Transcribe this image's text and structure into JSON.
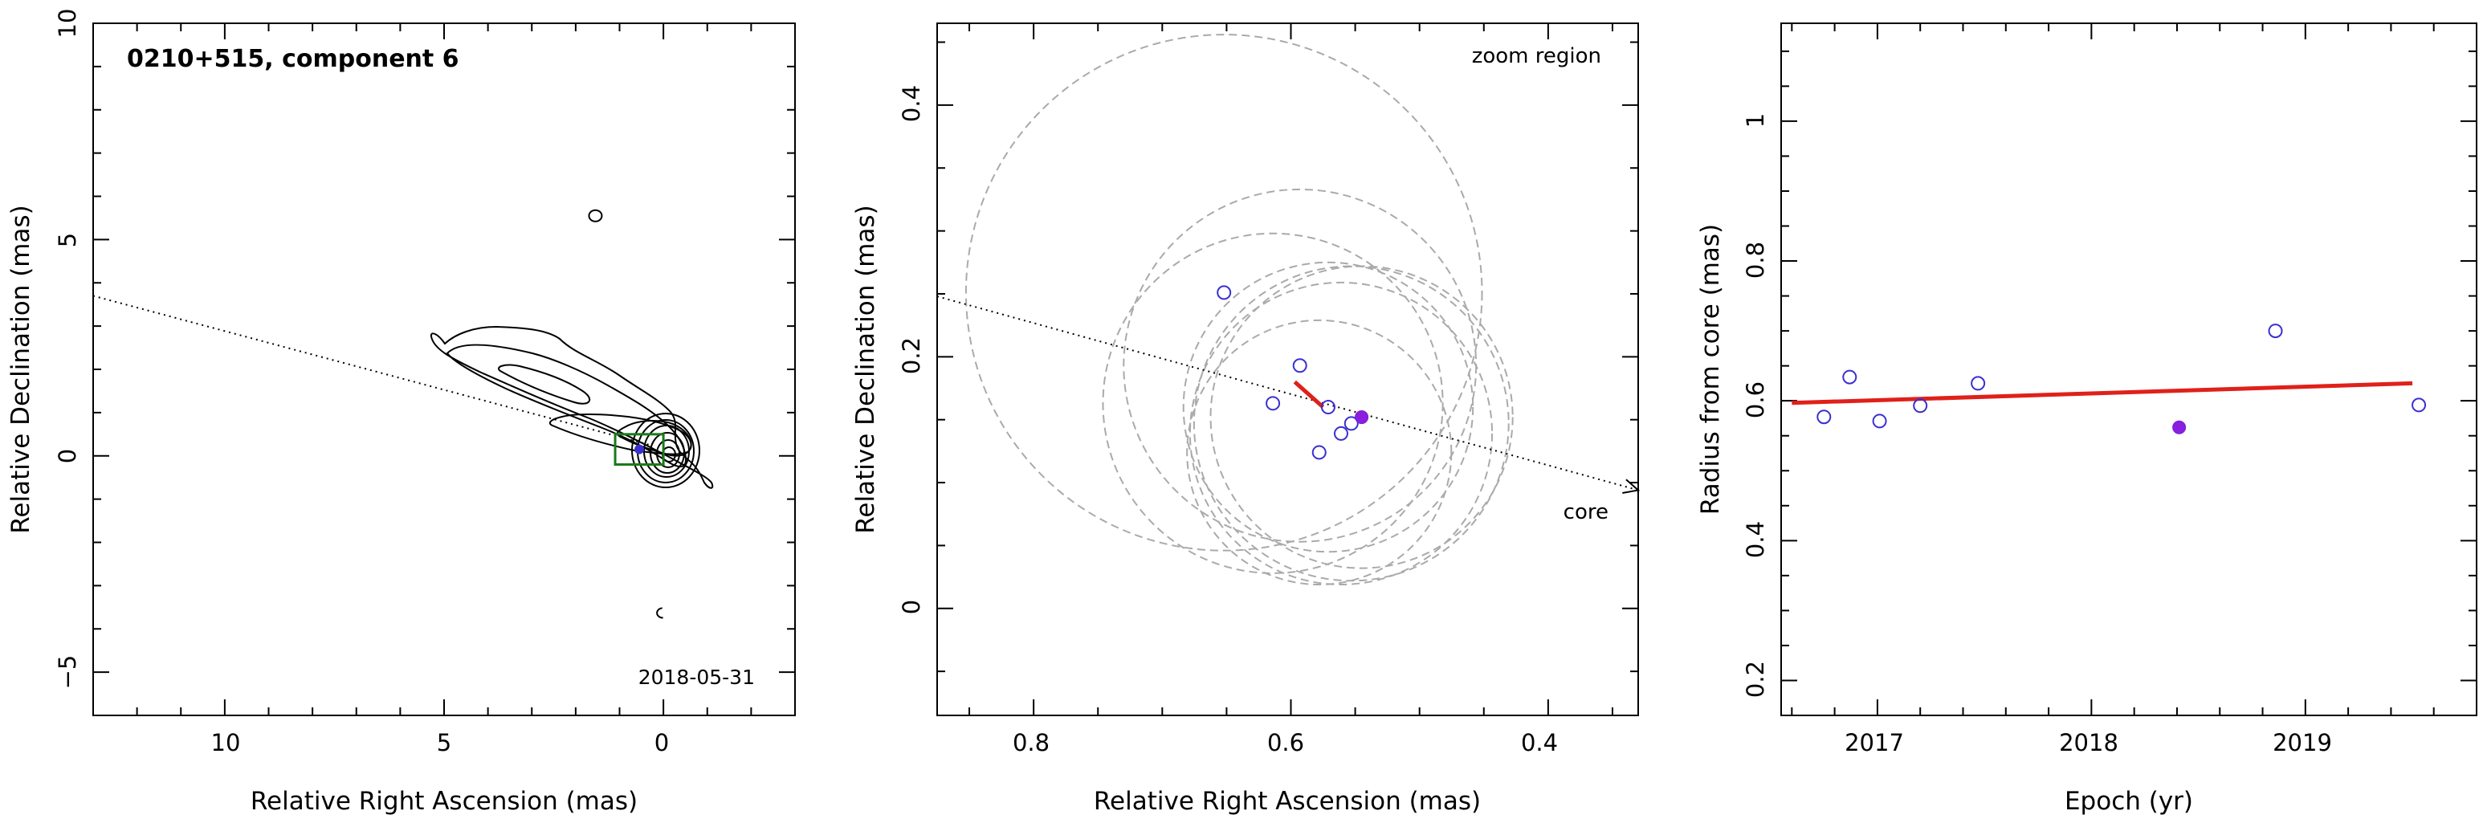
{
  "chart_data": [
    {
      "type": "scatter",
      "panel": "contour-map",
      "title": "0210+515, component 6",
      "date_label": "2018-05-31",
      "xlabel": "Relative Right Ascension (mas)",
      "ylabel": "Relative Declination (mas)",
      "xlim": [
        13,
        -3
      ],
      "ylim": [
        -6,
        10
      ],
      "xticks": [
        10,
        5,
        0
      ],
      "yticks": [
        10,
        5,
        0,
        -5
      ],
      "xtick_labels": [
        "10",
        "5",
        "0"
      ],
      "ytick_labels": [
        "10",
        "5",
        "0",
        "−5"
      ],
      "contour_center": [
        0,
        0
      ],
      "component_marker": {
        "x": 0.55,
        "y": 0.15,
        "box_half_width": 0.55,
        "box_half_height": 0.35
      },
      "small_features": [
        {
          "x": 1.55,
          "y": 5.55
        },
        {
          "x": 0.1,
          "y": -3.65
        }
      ],
      "direction_line": {
        "x": [
          13,
          0.3
        ],
        "y": [
          3.7,
          0.25
        ]
      },
      "colors": {
        "contour": "#000000",
        "box": "#1a7a1a",
        "marker": "#3a2fd0"
      }
    },
    {
      "type": "scatter",
      "panel": "zoom-region",
      "title": "zoom region",
      "annotation": "core",
      "xlabel": "Relative Right Ascension (mas)",
      "ylabel": "Relative Declination (mas)",
      "xlim": [
        0.875,
        0.33
      ],
      "ylim": [
        -0.085,
        0.465
      ],
      "xticks": [
        0.8,
        0.6,
        0.4
      ],
      "yticks": [
        0.4,
        0.2,
        0
      ],
      "xtick_labels": [
        "0.8",
        "0.6",
        "0.4"
      ],
      "ytick_labels": [
        "0.4",
        "0.2",
        "0"
      ],
      "open_points": {
        "x": [
          0.652,
          0.614,
          0.593,
          0.578,
          0.571,
          0.561,
          0.553
        ],
        "y": [
          0.251,
          0.163,
          0.193,
          0.124,
          0.16,
          0.139,
          0.147
        ]
      },
      "filled_point": {
        "x": 0.545,
        "y": 0.152
      },
      "position_circles": [
        {
          "x": 0.652,
          "y": 0.251,
          "r": 0.205
        },
        {
          "x": 0.614,
          "y": 0.163,
          "r": 0.135
        },
        {
          "x": 0.593,
          "y": 0.193,
          "r": 0.14
        },
        {
          "x": 0.578,
          "y": 0.124,
          "r": 0.105
        },
        {
          "x": 0.571,
          "y": 0.16,
          "r": 0.115
        },
        {
          "x": 0.561,
          "y": 0.139,
          "r": 0.12
        },
        {
          "x": 0.553,
          "y": 0.147,
          "r": 0.125
        },
        {
          "x": 0.545,
          "y": 0.152,
          "r": 0.12
        }
      ],
      "fit_segment": {
        "x": [
          0.597,
          0.575
        ],
        "y": [
          0.18,
          0.16
        ]
      },
      "direction_line": {
        "x": [
          0.875,
          0.33
        ],
        "y": [
          0.248,
          0.094
        ]
      },
      "colors": {
        "points": "#3a2fd0",
        "fit": "#e0201a",
        "circles": "#aaaaaa"
      }
    },
    {
      "type": "scatter",
      "panel": "radius-vs-epoch",
      "xlabel": "Epoch (yr)",
      "ylabel": "Radius from core (mas)",
      "xlim": [
        2016.55,
        2019.8
      ],
      "ylim": [
        0.15,
        1.14
      ],
      "xticks": [
        2017,
        2018,
        2019
      ],
      "yticks": [
        1,
        0.8,
        0.6,
        0.4,
        0.2
      ],
      "xtick_labels": [
        "2017",
        "2018",
        "2019"
      ],
      "ytick_labels": [
        "1",
        "0.8",
        "0.6",
        "0.4",
        "0.2"
      ],
      "open_points": {
        "x": [
          2016.75,
          2016.87,
          2017.01,
          2017.2,
          2017.47,
          2018.86,
          2019.53
        ],
        "y": [
          0.577,
          0.634,
          0.571,
          0.593,
          0.625,
          0.7,
          0.594
        ]
      },
      "filled_point": {
        "x": 2018.41,
        "y": 0.562
      },
      "fit_line": {
        "x": [
          2016.6,
          2019.5
        ],
        "y": [
          0.597,
          0.625
        ]
      },
      "colors": {
        "points": "#3a2fd0",
        "fit": "#e0201a"
      }
    }
  ]
}
